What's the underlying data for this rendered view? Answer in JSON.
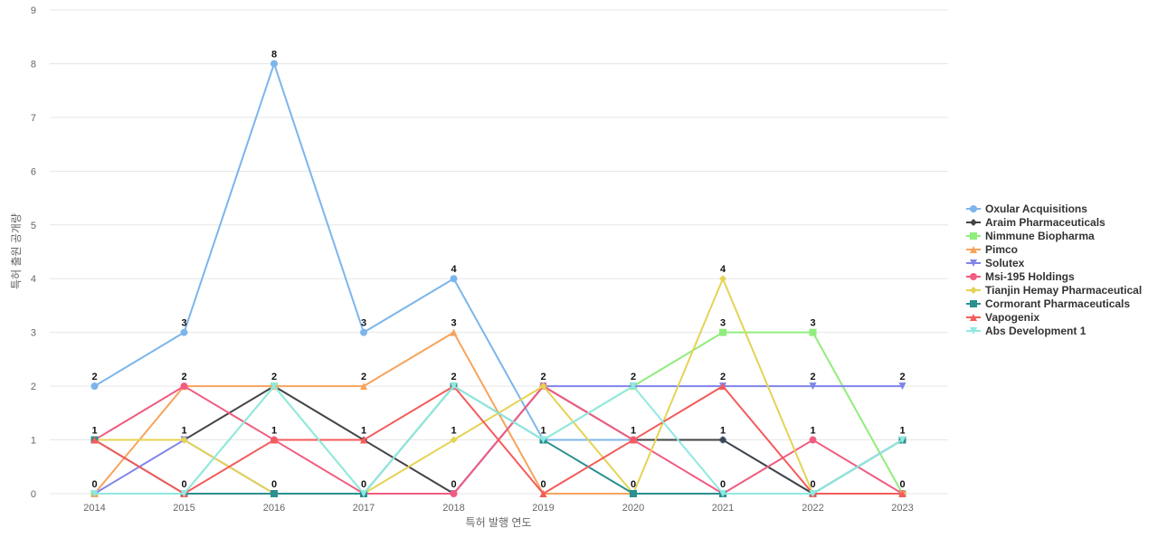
{
  "chart_data": {
    "type": "line",
    "title": "",
    "xlabel": "특허 발행 연도",
    "ylabel": "특허 출원 공개량",
    "categories": [
      "2014",
      "2015",
      "2016",
      "2017",
      "2018",
      "2019",
      "2020",
      "2021",
      "2022",
      "2023"
    ],
    "ylim": [
      0,
      9
    ],
    "yticks": [
      "0",
      "1",
      "2",
      "3",
      "4",
      "5",
      "6",
      "7",
      "8",
      "9"
    ],
    "grid": true,
    "legend_position": "right",
    "series": [
      {
        "name": "Oxular Acquisitions",
        "color": "#7cb5ec",
        "marker": "circle",
        "values": [
          2,
          3,
          8,
          3,
          4,
          1,
          1,
          1,
          0,
          0
        ]
      },
      {
        "name": "Araim Pharmaceuticals",
        "color": "#434348",
        "marker": "diamond",
        "values": [
          1,
          1,
          2,
          1,
          0,
          2,
          1,
          1,
          0,
          1
        ]
      },
      {
        "name": "Nimmune Biopharma",
        "color": "#90ed7d",
        "marker": "square",
        "values": [
          0,
          0,
          2,
          0,
          2,
          1,
          2,
          3,
          3,
          0
        ]
      },
      {
        "name": "Pimco",
        "color": "#f7a35c",
        "marker": "triangle",
        "values": [
          0,
          2,
          2,
          2,
          3,
          0,
          0,
          0,
          0,
          0
        ]
      },
      {
        "name": "Solutex",
        "color": "#8085e9",
        "marker": "triangle-down",
        "values": [
          0,
          1,
          0,
          0,
          0,
          2,
          2,
          2,
          2,
          2
        ]
      },
      {
        "name": "Msi-195 Holdings",
        "color": "#f15c80",
        "marker": "circle",
        "values": [
          1,
          2,
          1,
          0,
          0,
          2,
          1,
          0,
          1,
          0
        ]
      },
      {
        "name": "Tianjin Hemay Pharmaceutical",
        "color": "#e4d354",
        "marker": "diamond",
        "values": [
          1,
          1,
          0,
          0,
          1,
          2,
          0,
          4,
          0,
          0
        ]
      },
      {
        "name": "Cormorant Pharmaceuticals",
        "color": "#2b908f",
        "marker": "square",
        "values": [
          1,
          0,
          0,
          0,
          2,
          1,
          0,
          0,
          0,
          1
        ]
      },
      {
        "name": "Vapogenix",
        "color": "#f45b5b",
        "marker": "triangle",
        "values": [
          1,
          0,
          1,
          1,
          2,
          0,
          1,
          2,
          0,
          0
        ]
      },
      {
        "name": "Abs Development 1",
        "color": "#91e8e1",
        "marker": "triangle-down",
        "values": [
          0,
          0,
          2,
          0,
          2,
          1,
          2,
          0,
          0,
          1
        ]
      }
    ],
    "data_labels": {
      "labeled_series": "Oxular Acquisitions",
      "values": [
        [
          "2",
          "1",
          "0"
        ],
        [
          "3",
          "2",
          "1",
          "0"
        ],
        [
          "8",
          "2",
          "1",
          "0"
        ],
        [
          "3",
          "2",
          "1",
          "0"
        ],
        [
          "4",
          "3",
          "2",
          "1",
          "0"
        ],
        [
          "2",
          "1",
          "0"
        ],
        [
          "2",
          "1",
          "0"
        ],
        [
          "4",
          "3",
          "2",
          "1",
          "0"
        ],
        [
          "3",
          "2",
          "1",
          "0"
        ],
        [
          "2",
          "1",
          "0"
        ]
      ]
    }
  }
}
